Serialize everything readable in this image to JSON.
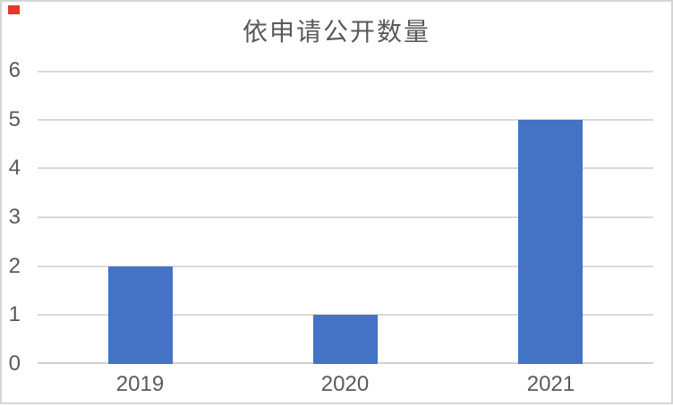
{
  "frame": {
    "background": "#ffffff",
    "border_color": "#d5d5d5",
    "marker_color": "#e8362d"
  },
  "chart_data": {
    "type": "bar",
    "title": "依申请公开数量",
    "categories": [
      "2019",
      "2020",
      "2021"
    ],
    "values": [
      2,
      1,
      5
    ],
    "xlabel": "",
    "ylabel": "",
    "ylim": [
      0,
      6
    ],
    "yticks": [
      0,
      1,
      2,
      3,
      4,
      5,
      6
    ],
    "grid": true,
    "legend": false,
    "bar_color": "#4472c4",
    "gridline_color": "#d9d9d9",
    "axis_line_color": "#d0d0d0",
    "text_color": "#595959"
  }
}
